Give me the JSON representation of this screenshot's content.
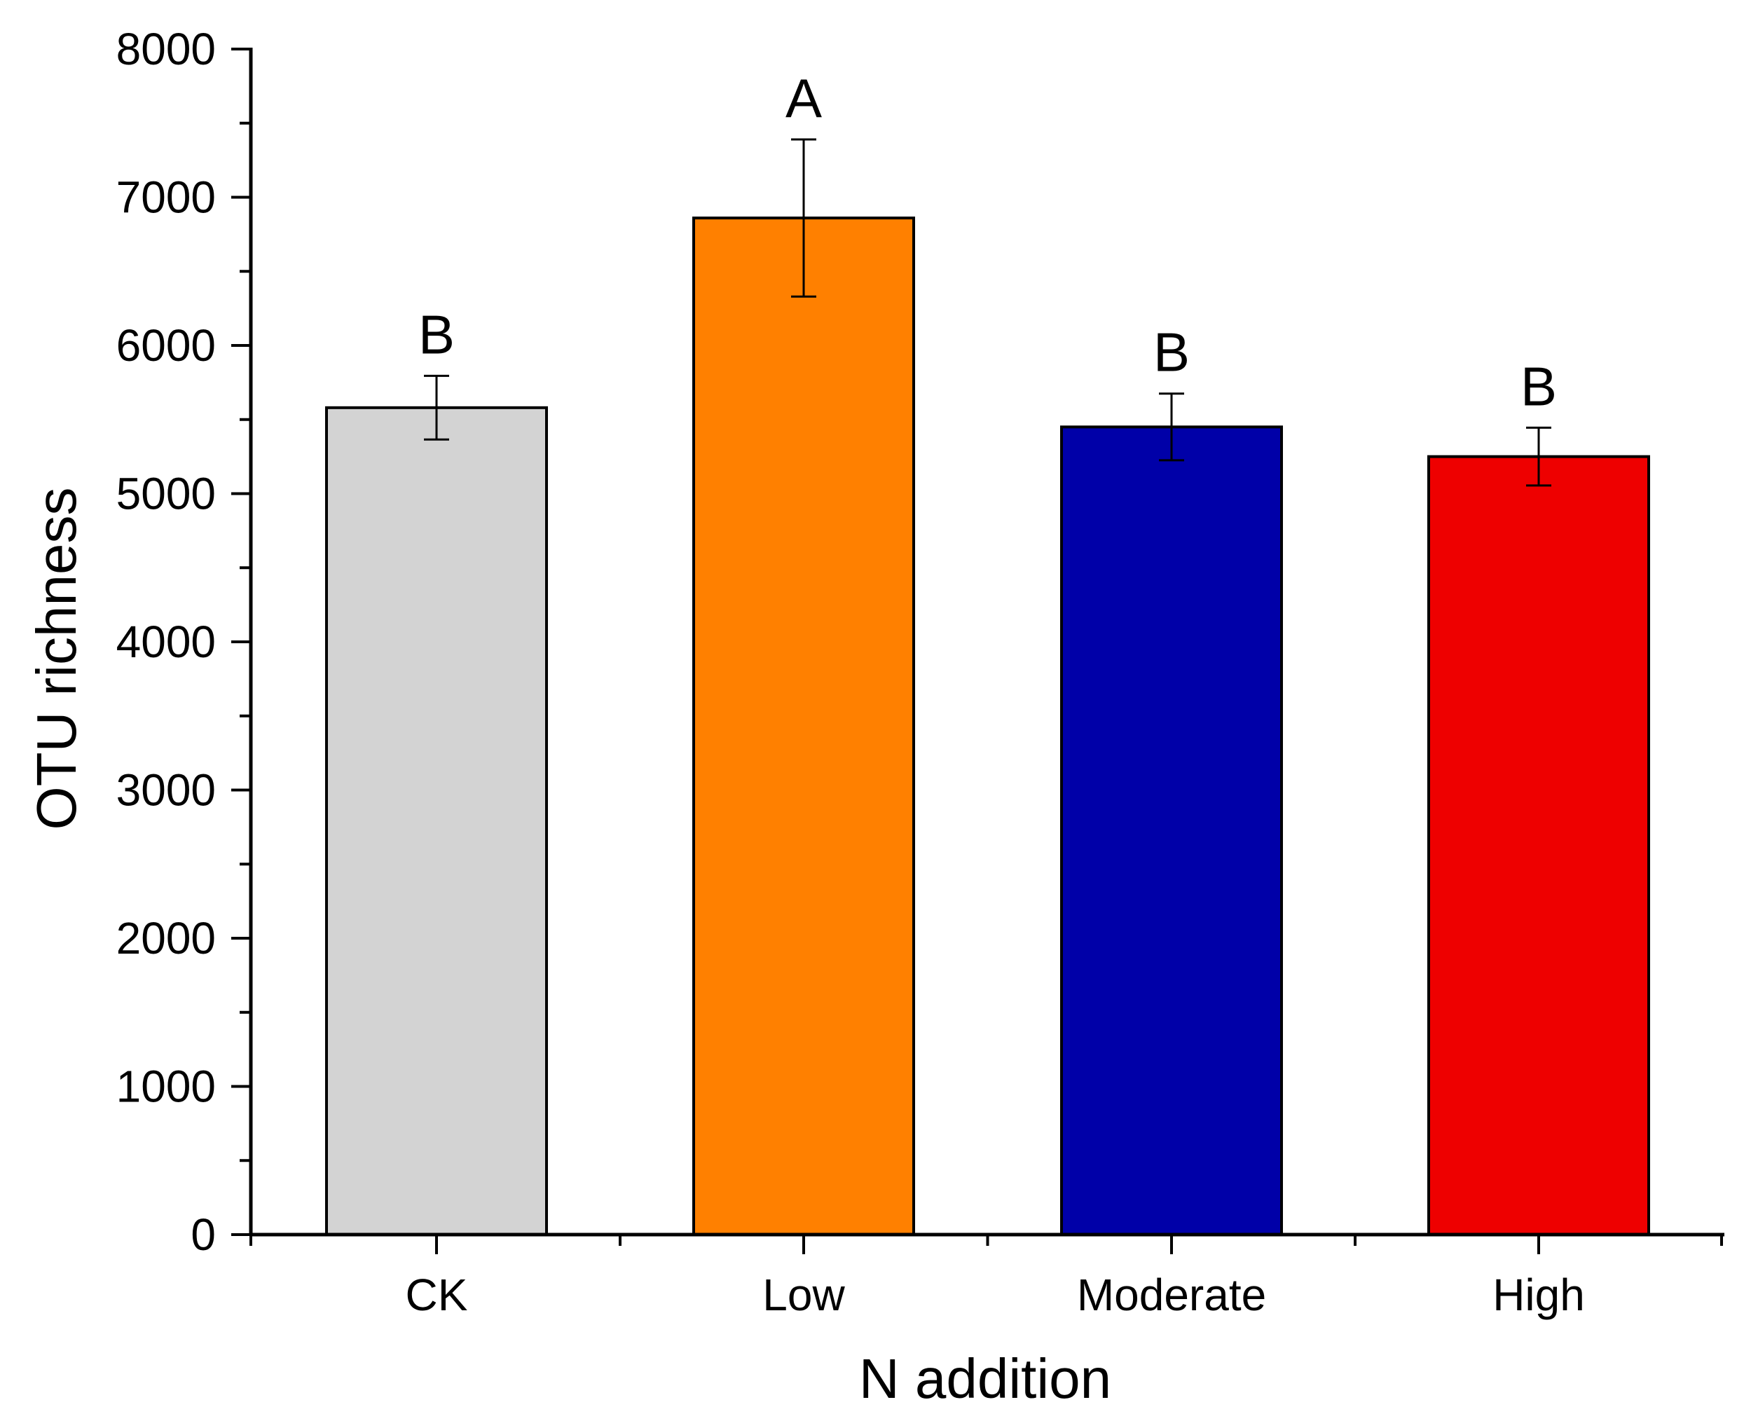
{
  "chart_data": {
    "type": "bar",
    "title": "",
    "xlabel": "N addition",
    "ylabel": "OTU richness",
    "categories": [
      "CK",
      "Low",
      "Moderate",
      "High"
    ],
    "values": [
      5580,
      6860,
      5450,
      5250
    ],
    "errors": [
      215,
      530,
      225,
      195
    ],
    "significance_letters": [
      "B",
      "A",
      "B",
      "B"
    ],
    "colors": [
      "#D3D3D3",
      "#FF8000",
      "#0000A8",
      "#EE0000"
    ],
    "ylim": [
      0,
      8000
    ],
    "yticks": [
      0,
      1000,
      2000,
      3000,
      4000,
      5000,
      6000,
      7000,
      8000
    ],
    "ytick_labels": [
      "0",
      "1000",
      "2000",
      "3000",
      "4000",
      "5000",
      "6000",
      "7000",
      "8000"
    ],
    "minor_ytick_step": 500,
    "grid": false,
    "legend": "none"
  }
}
